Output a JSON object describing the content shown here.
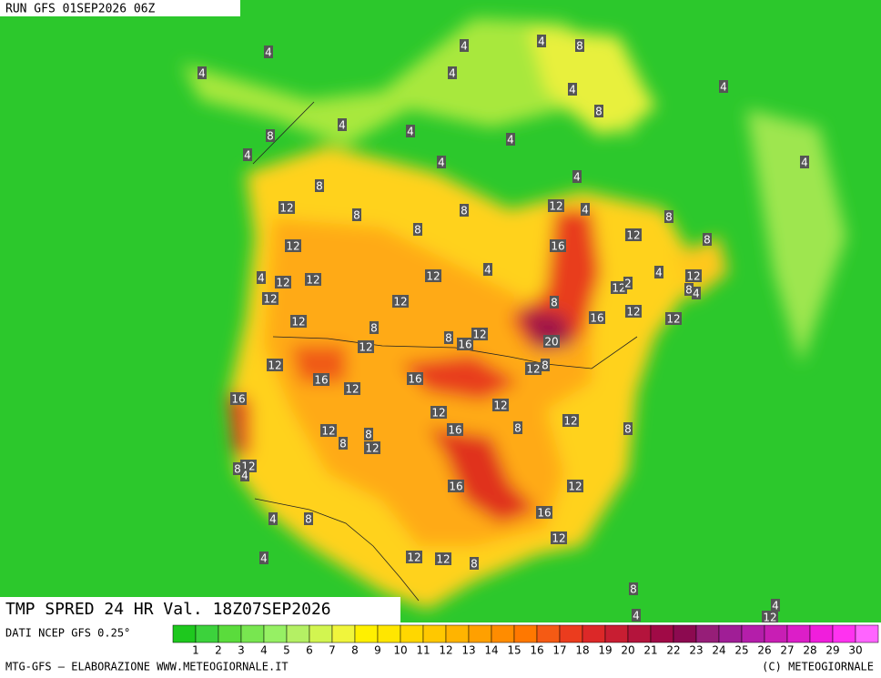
{
  "header": {
    "run": "RUN GFS 01SEP2026 06Z"
  },
  "map": {
    "labels": [
      4,
      4,
      4,
      4,
      8,
      4,
      4,
      8,
      4,
      4,
      8,
      4,
      4,
      4,
      4,
      4,
      4,
      8,
      12,
      8,
      8,
      12,
      4,
      8,
      8,
      12,
      16,
      8,
      12,
      4,
      4,
      12,
      4,
      12,
      12,
      12,
      12,
      2,
      8,
      4,
      12,
      12,
      8,
      16,
      12,
      12,
      12,
      8,
      8,
      12,
      16,
      20,
      12,
      12,
      12,
      8,
      16,
      16,
      12,
      16,
      12,
      12,
      12,
      8,
      8,
      16,
      12,
      8,
      8,
      12,
      12,
      8,
      4,
      16,
      12,
      16,
      4,
      8,
      12,
      4,
      12,
      12,
      8,
      8,
      4,
      4,
      12
    ]
  },
  "footer": {
    "title": "TMP SPRED 24 HR Val. 18Z07SEP2026",
    "source": "DATI NCEP GFS 0.25°",
    "credit": "MTG-GFS – ELABORAZIONE WWW.METEOGIORNALE.IT",
    "copyright": "(C) METEOGIORNALE"
  },
  "legend": {
    "ticks": [
      1,
      2,
      3,
      4,
      5,
      6,
      7,
      8,
      9,
      10,
      11,
      12,
      13,
      14,
      15,
      16,
      17,
      18,
      19,
      20,
      21,
      22,
      23,
      24,
      25,
      26,
      27,
      28,
      29,
      30
    ],
    "colors": [
      "#1ec81e",
      "#3cd23c",
      "#5adc3c",
      "#78e650",
      "#96f064",
      "#b4f064",
      "#d2f550",
      "#f0f53c",
      "#fff000",
      "#ffe600",
      "#ffd700",
      "#ffc800",
      "#ffb400",
      "#ffa000",
      "#ff8c00",
      "#ff7800",
      "#f55a14",
      "#eb3c1e",
      "#dc2828",
      "#c81e32",
      "#b4143c",
      "#a00a46",
      "#8c0a50",
      "#961e78",
      "#a01e96",
      "#b41eaa",
      "#c81eb4",
      "#dc1ec8",
      "#f01edc",
      "#ff32f0",
      "#ff64ff"
    ]
  }
}
